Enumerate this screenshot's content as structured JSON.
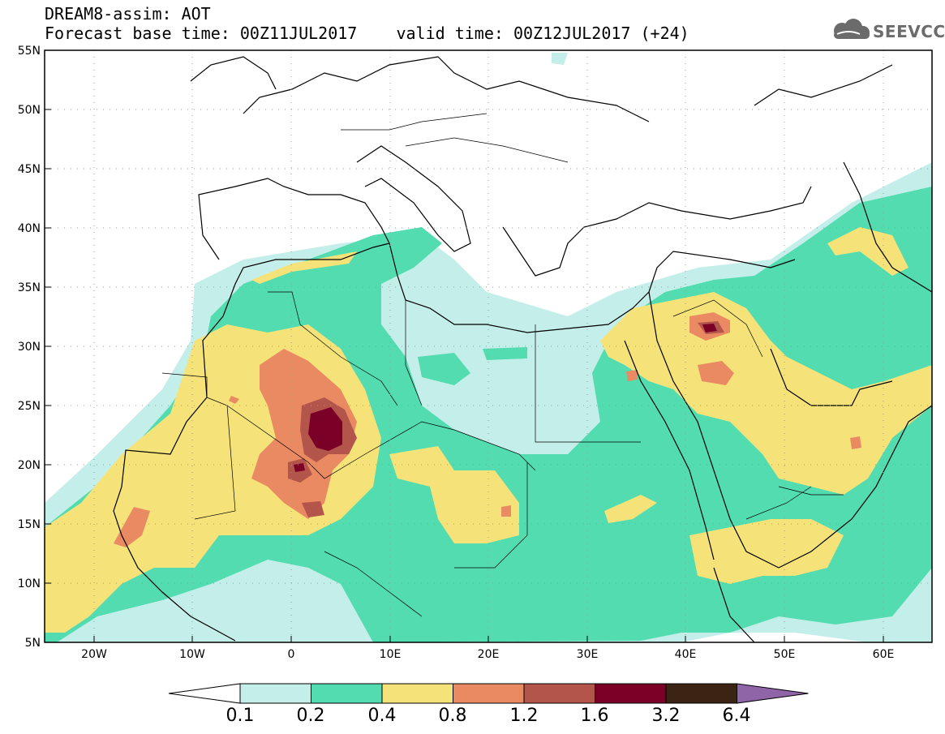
{
  "header": {
    "line1": "DREAM8-assim: AOT",
    "line2": "Forecast base time: 00Z11JUL2017    valid time: 00Z12JUL2017 (+24)"
  },
  "logo": {
    "text": "SEEVCCC",
    "icon": "cloud-icon",
    "color": "#6b6b6b"
  },
  "map": {
    "lon_range": [
      -25,
      65
    ],
    "lat_range": [
      5,
      55
    ],
    "lat_labels": [
      "55N",
      "50N",
      "45N",
      "40N",
      "35N",
      "30N",
      "25N",
      "20N",
      "15N",
      "10N",
      "5N"
    ],
    "lon_labels": [
      "20W",
      "10W",
      "0",
      "10E",
      "20E",
      "30E",
      "40E",
      "50E",
      "60E"
    ],
    "grid": "dotted"
  },
  "colorbar": {
    "labels": [
      "0.1",
      "0.2",
      "0.4",
      "0.8",
      "1.2",
      "1.6",
      "3.2",
      "6.4"
    ],
    "colors": [
      "#ffffff",
      "#c4eee9",
      "#52dcb0",
      "#f5e37a",
      "#e98a62",
      "#b3554a",
      "#7a0028",
      "#3b2414",
      "#8f65a8"
    ]
  }
}
